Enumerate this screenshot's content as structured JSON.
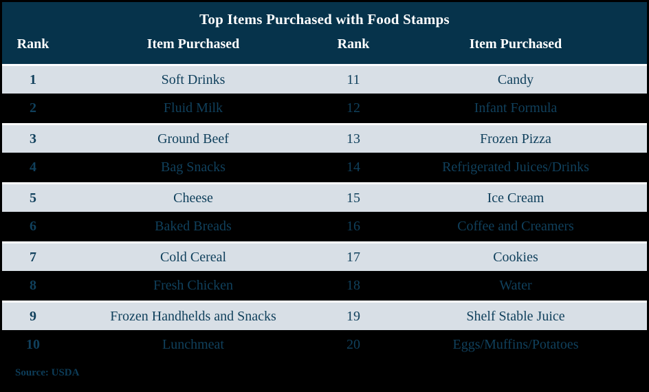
{
  "chart_data": {
    "type": "table",
    "title": "Top Items Purchased with Food Stamps",
    "columns": [
      "Rank",
      "Item Purchased",
      "Rank",
      "Item Purchased"
    ],
    "rows": [
      [
        "1",
        "Soft Drinks",
        "11",
        "Candy"
      ],
      [
        "2",
        "Fluid Milk",
        "12",
        "Infant Formula"
      ],
      [
        "3",
        "Ground Beef",
        "13",
        "Frozen Pizza"
      ],
      [
        "4",
        "Bag Snacks",
        "14",
        "Refrigerated Juices/Drinks"
      ],
      [
        "5",
        "Cheese",
        "15",
        "Ice Cream"
      ],
      [
        "6",
        "Baked Breads",
        "16",
        "Coffee and Creamers"
      ],
      [
        "7",
        "Cold Cereal",
        "17",
        "Cookies"
      ],
      [
        "8",
        "Fresh Chicken",
        "18",
        "Water"
      ],
      [
        "9",
        "Frozen Handhelds and Snacks",
        "19",
        "Shelf Stable Juice"
      ],
      [
        "10",
        "Lunchmeat",
        "20",
        "Eggs/Muffins/Potatoes"
      ]
    ],
    "source": "Source: USDA",
    "layout": {
      "row_shading": "alternating",
      "light_row_positions": "odd ranks (1,3,5,7,9)",
      "dark_row_positions": "even ranks (2,4,6,8,10)",
      "left_rank_column_bold": true,
      "right_rank_column_bold": false
    }
  },
  "colors": {
    "header_bg": "#06334b",
    "header_text": "#ffffff",
    "light_row_bg": "#d8dfe6",
    "dark_row_bg": "#000000",
    "cell_text": "#10405c",
    "row_separator": "#fcfdfe",
    "source_text": "#0d3d59"
  }
}
